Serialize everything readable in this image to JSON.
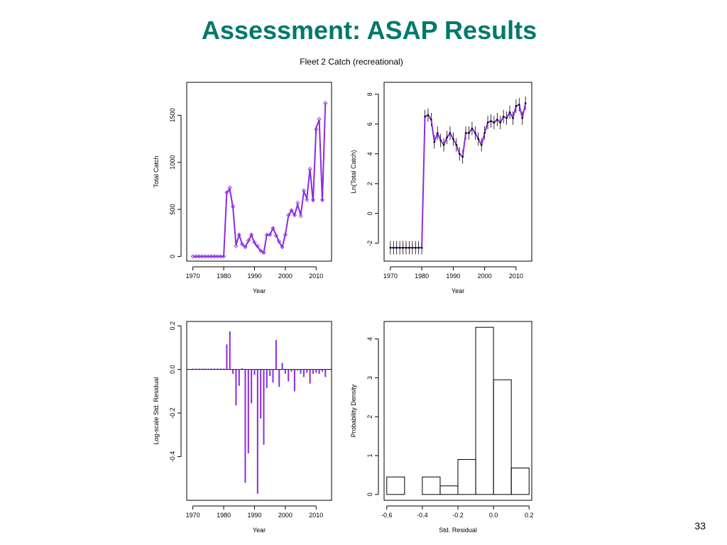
{
  "slide": {
    "title": "Assessment: ASAP Results",
    "figure_title": "Fleet 2 Catch  (recreational)",
    "page_number": "33"
  },
  "colors": {
    "title": "#00796b",
    "series": "#8a2be2",
    "axis": "#000000"
  },
  "chart_data": [
    {
      "type": "line",
      "xlabel": "Year",
      "ylabel": "Total Catch",
      "xlim": [
        1968,
        2015
      ],
      "ylim": [
        -50,
        1850
      ],
      "xticks": [
        1970,
        1980,
        1990,
        2000,
        2010
      ],
      "yticks": [
        0,
        500,
        1000,
        1500
      ],
      "series": [
        {
          "x": [
            1970,
            1971,
            1972,
            1973,
            1974,
            1975,
            1976,
            1977,
            1978,
            1979,
            1980,
            1981,
            1982,
            1983,
            1984,
            1985,
            1986,
            1987,
            1988,
            1989,
            1990,
            1991,
            1992,
            1993,
            1994,
            1995,
            1996,
            1997,
            1998,
            1999,
            2000,
            2001,
            2002,
            2003,
            2004,
            2005,
            2006,
            2007,
            2008,
            2009,
            2010,
            2011,
            2012,
            2013
          ],
          "y": [
            0,
            0,
            0,
            0,
            0,
            0,
            0,
            0,
            0,
            0,
            0,
            680,
            710,
            520,
            120,
            230,
            130,
            100,
            160,
            230,
            140,
            100,
            60,
            40,
            230,
            230,
            300,
            230,
            150,
            100,
            230,
            430,
            490,
            440,
            550,
            440,
            690,
            620,
            930,
            580,
            1370,
            1450,
            590,
            1630
          ]
        },
        {
          "x": [
            1970,
            1971,
            1972,
            1973,
            1974,
            1975,
            1976,
            1977,
            1978,
            1979,
            1980,
            1981,
            1982,
            1983,
            1984,
            1985,
            1986,
            1987,
            1988,
            1989,
            1990,
            1991,
            1992,
            1993,
            1994,
            1995,
            1996,
            1997,
            1998,
            1999,
            2000,
            2001,
            2002,
            2003,
            2004,
            2005,
            2006,
            2007,
            2008,
            2009,
            2010,
            2011,
            2012,
            2013
          ],
          "y": [
            0,
            0,
            0,
            0,
            0,
            0,
            0,
            0,
            0,
            0,
            0,
            680,
            730,
            530,
            110,
            230,
            130,
            100,
            170,
            230,
            150,
            110,
            60,
            40,
            230,
            230,
            300,
            220,
            160,
            100,
            230,
            440,
            490,
            440,
            570,
            430,
            700,
            600,
            930,
            600,
            1350,
            1460,
            600,
            1630
          ]
        }
      ]
    },
    {
      "type": "line",
      "xlabel": "Year",
      "ylabel": "Ln(Total Catch)",
      "xlim": [
        1968,
        2015
      ],
      "ylim": [
        -3.2,
        8.8
      ],
      "xticks": [
        1970,
        1980,
        1990,
        2000,
        2010
      ],
      "yticks": [
        -2,
        0,
        2,
        4,
        6,
        8
      ],
      "series": [
        {
          "x": [
            1970,
            1971,
            1972,
            1973,
            1974,
            1975,
            1976,
            1977,
            1978,
            1979,
            1980,
            1981,
            1982,
            1983,
            1984,
            1985,
            1986,
            1987,
            1988,
            1989,
            1990,
            1991,
            1992,
            1993,
            1994,
            1995,
            1996,
            1997,
            1998,
            1999,
            2000,
            2001,
            2002,
            2003,
            2004,
            2005,
            2006,
            2007,
            2008,
            2009,
            2010,
            2011,
            2012,
            2013
          ],
          "y": [
            -2.3,
            -2.3,
            -2.3,
            -2.3,
            -2.3,
            -2.3,
            -2.3,
            -2.3,
            -2.3,
            -2.3,
            -2.3,
            6.5,
            6.6,
            6.3,
            4.8,
            5.4,
            4.9,
            4.6,
            5.1,
            5.4,
            5.0,
            4.6,
            4.0,
            3.8,
            5.4,
            5.4,
            5.7,
            5.4,
            5.0,
            4.6,
            5.4,
            6.1,
            6.2,
            6.1,
            6.3,
            6.1,
            6.5,
            6.4,
            6.8,
            6.4,
            7.2,
            7.3,
            6.4,
            7.4
          ]
        }
      ],
      "error_bar_halfwidth": 0.45
    },
    {
      "type": "bar",
      "xlabel": "Year",
      "ylabel": "Log-scale Std. Residual",
      "xlim": [
        1968,
        2015
      ],
      "ylim": [
        -0.6,
        0.22
      ],
      "xticks": [
        1970,
        1980,
        1990,
        2000,
        2010
      ],
      "yticks": [
        -0.4,
        -0.2,
        0.0,
        0.2
      ],
      "ytick_labels": [
        "-0.4",
        "-0.2",
        "0.0",
        "0.2"
      ],
      "x": [
        1970,
        1971,
        1972,
        1973,
        1974,
        1975,
        1976,
        1977,
        1978,
        1979,
        1980,
        1981,
        1982,
        1983,
        1984,
        1985,
        1986,
        1987,
        1988,
        1989,
        1990,
        1991,
        1992,
        1993,
        1994,
        1995,
        1996,
        1997,
        1998,
        1999,
        2000,
        2001,
        2002,
        2003,
        2004,
        2005,
        2006,
        2007,
        2008,
        2009,
        2010,
        2011,
        2012,
        2013
      ],
      "values": [
        0.004,
        0.004,
        0.004,
        0.004,
        0.004,
        0.004,
        0.004,
        0.004,
        0.004,
        0.004,
        0.004,
        0.115,
        0.175,
        -0.02,
        -0.165,
        -0.075,
        0.005,
        -0.52,
        -0.385,
        -0.155,
        -0.025,
        -0.57,
        -0.225,
        -0.345,
        -0.085,
        -0.03,
        -0.06,
        0.135,
        -0.08,
        0.03,
        -0.02,
        -0.055,
        -0.01,
        -0.1,
        -0.005,
        -0.02,
        -0.035,
        -0.015,
        -0.065,
        -0.02,
        -0.015,
        -0.02,
        -0.01,
        -0.035
      ]
    },
    {
      "type": "bar",
      "subtype": "histogram",
      "xlabel": "Std. Residual",
      "ylabel": "Probability Density",
      "xlim": [
        -0.615,
        0.215
      ],
      "ylim": [
        -0.15,
        4.45
      ],
      "xticks": [
        -0.6,
        -0.4,
        -0.2,
        0.0,
        0.2
      ],
      "xtick_labels": [
        "-0.6",
        "-0.4",
        "-0.2",
        "0.0",
        "0.2"
      ],
      "yticks": [
        0,
        1,
        2,
        3,
        4
      ],
      "bin_edges": [
        -0.6,
        -0.5,
        -0.4,
        -0.3,
        -0.2,
        -0.1,
        0.0,
        0.1,
        0.2
      ],
      "values": [
        0.45,
        0.0,
        0.45,
        0.22,
        0.9,
        4.3,
        2.95,
        0.68
      ]
    }
  ]
}
